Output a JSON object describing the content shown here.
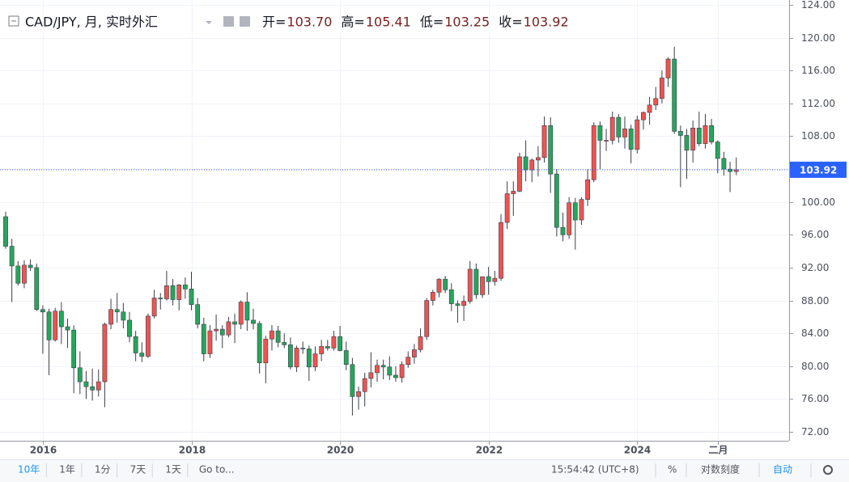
{
  "chart_data": {
    "type": "candlestick",
    "title": "CAD/JPY, 月, 实时外汇",
    "legend_values": [
      {
        "label": "开=",
        "value": "103.70"
      },
      {
        "label": "高=",
        "value": "105.41"
      },
      {
        "label": "低=",
        "value": "103.25"
      },
      {
        "label": "收=",
        "value": "103.92"
      }
    ],
    "up_color": "#ef5350",
    "down_color": "#26a65b",
    "grid": true,
    "x": [
      "2015-07",
      "2015-08",
      "2015-09",
      "2015-10",
      "2015-11",
      "2015-12",
      "2016-01",
      "2016-02",
      "2016-03",
      "2016-04",
      "2016-05",
      "2016-06",
      "2016-07",
      "2016-08",
      "2016-09",
      "2016-10",
      "2016-11",
      "2016-12",
      "2017-01",
      "2017-02",
      "2017-03",
      "2017-04",
      "2017-05",
      "2017-06",
      "2017-07",
      "2017-08",
      "2017-09",
      "2017-10",
      "2017-11",
      "2017-12",
      "2018-01",
      "2018-02",
      "2018-03",
      "2018-04",
      "2018-05",
      "2018-06",
      "2018-07",
      "2018-08",
      "2018-09",
      "2018-10",
      "2018-11",
      "2018-12",
      "2019-01",
      "2019-02",
      "2019-03",
      "2019-04",
      "2019-05",
      "2019-06",
      "2019-07",
      "2019-08",
      "2019-09",
      "2019-10",
      "2019-11",
      "2019-12",
      "2020-01",
      "2020-02",
      "2020-03",
      "2020-04",
      "2020-05",
      "2020-06",
      "2020-07",
      "2020-08",
      "2020-09",
      "2020-10",
      "2020-11",
      "2020-12",
      "2021-01",
      "2021-02",
      "2021-03",
      "2021-04",
      "2021-05",
      "2021-06",
      "2021-07",
      "2021-08",
      "2021-09",
      "2021-10",
      "2021-11",
      "2021-12",
      "2022-01",
      "2022-02",
      "2022-03",
      "2022-04",
      "2022-05",
      "2022-06",
      "2022-07",
      "2022-08",
      "2022-09",
      "2022-10",
      "2022-11",
      "2022-12",
      "2023-01",
      "2023-02",
      "2023-03",
      "2023-04",
      "2023-05",
      "2023-06",
      "2023-07",
      "2023-08",
      "2023-09",
      "2023-10",
      "2023-11",
      "2023-12",
      "2024-01",
      "2024-02",
      "2024-03",
      "2024-04",
      "2024-05",
      "2024-06",
      "2024-07",
      "2024-08",
      "2024-09",
      "2024-10",
      "2024-11",
      "2024-12",
      "2025-01",
      "2025-02",
      "2025-03",
      "2025-04",
      "2025-05"
    ],
    "open": [
      98.2,
      94.6,
      92.2,
      90.1,
      92.3,
      92.0,
      86.9,
      86.6,
      83.2,
      86.7,
      84.8,
      84.4,
      79.8,
      78.1,
      77.5,
      77.1,
      78.1,
      85.1,
      86.9,
      86.6,
      85.6,
      83.6,
      81.6,
      81.2,
      86.1,
      88.3,
      88.2,
      89.8,
      88.1,
      89.9,
      89.4,
      87.5,
      85.1,
      81.5,
      84.3,
      84.5,
      83.8,
      85.4,
      85.1,
      87.8,
      85.6,
      85.2,
      80.4,
      83.3,
      84.3,
      82.9,
      82.6,
      79.9,
      82.2,
      82.1,
      79.9,
      81.5,
      82.4,
      82.2,
      83.6,
      81.9,
      80.2,
      76.3,
      76.9,
      78.5,
      79.2,
      80.1,
      79.9,
      78.9,
      78.6,
      80.2,
      81.1,
      82.0,
      83.6,
      88.0,
      89.0,
      90.6,
      89.3,
      87.6,
      87.4,
      87.9,
      91.8,
      88.7,
      90.9,
      90.3,
      90.7,
      97.5,
      101.0,
      101.3,
      105.5,
      103.9,
      105.1,
      105.4,
      109.3,
      103.4,
      96.9,
      96.0,
      99.9,
      97.8,
      100.3,
      102.7,
      109.3,
      107.5,
      107.5,
      110.3,
      107.9,
      108.9,
      106.4,
      110.0,
      110.9,
      111.8,
      112.6,
      115.1,
      117.4,
      108.6,
      108.1,
      106.3,
      109.0,
      107.1,
      109.3,
      107.3,
      105.3,
      104.0,
      103.7
    ],
    "high": [
      98.8,
      95.5,
      92.8,
      92.9,
      93.0,
      92.5,
      87.4,
      87.0,
      87.1,
      87.8,
      85.8,
      85.0,
      81.8,
      79.4,
      79.7,
      79.6,
      85.3,
      88.2,
      88.9,
      87.7,
      86.6,
      84.3,
      82.9,
      86.4,
      89.3,
      88.9,
      91.6,
      90.6,
      90.0,
      90.8,
      91.5,
      88.3,
      85.9,
      85.0,
      86.3,
      85.0,
      86.0,
      86.4,
      88.0,
      89.0,
      87.0,
      85.5,
      83.7,
      85.0,
      84.9,
      84.0,
      83.5,
      82.5,
      83.0,
      82.5,
      82.4,
      83.2,
      83.2,
      84.3,
      84.9,
      83.0,
      81.0,
      77.5,
      79.2,
      81.7,
      80.8,
      80.8,
      81.2,
      80.0,
      80.6,
      81.8,
      82.7,
      84.6,
      88.3,
      89.3,
      90.7,
      91.0,
      90.1,
      88.0,
      88.6,
      92.8,
      92.5,
      90.9,
      92.1,
      91.6,
      98.5,
      102.5,
      102.5,
      106.0,
      107.5,
      105.3,
      106.8,
      110.4,
      110.3,
      104.0,
      98.7,
      100.6,
      100.5,
      100.6,
      104.0,
      109.7,
      109.8,
      108.9,
      111.0,
      110.7,
      110.4,
      109.4,
      110.5,
      111.0,
      112.8,
      114.0,
      116.0,
      117.6,
      118.9,
      109.3,
      108.9,
      109.9,
      111.0,
      110.7,
      110.1,
      107.5,
      106.1,
      104.9,
      105.41
    ],
    "low": [
      94.3,
      87.8,
      89.8,
      89.5,
      91.6,
      86.7,
      81.5,
      78.9,
      83.0,
      82.7,
      82.2,
      76.7,
      76.6,
      76.0,
      75.8,
      76.3,
      75.0,
      84.5,
      85.3,
      84.6,
      82.9,
      80.6,
      80.5,
      81.0,
      85.8,
      86.9,
      88.0,
      87.4,
      86.8,
      88.2,
      86.8,
      84.6,
      80.6,
      81.0,
      83.1,
      82.2,
      83.5,
      82.8,
      84.5,
      84.3,
      84.5,
      79.1,
      77.9,
      81.9,
      82.3,
      82.2,
      79.6,
      79.3,
      81.5,
      78.2,
      79.4,
      80.6,
      81.9,
      81.9,
      81.8,
      79.5,
      74.0,
      74.7,
      75.1,
      77.4,
      78.1,
      78.4,
      78.3,
      78.1,
      78.0,
      79.8,
      80.3,
      81.7,
      83.2,
      87.4,
      88.4,
      88.9,
      86.7,
      85.3,
      85.5,
      87.6,
      88.2,
      88.3,
      88.7,
      89.8,
      90.4,
      96.7,
      98.3,
      101.2,
      102.5,
      102.4,
      103.1,
      104.8,
      101.1,
      95.8,
      95.2,
      95.5,
      94.2,
      97.2,
      99.5,
      102.4,
      104.0,
      106.2,
      107.0,
      107.2,
      106.5,
      104.7,
      105.9,
      108.8,
      109.4,
      111.2,
      112.0,
      114.0,
      108.3,
      101.8,
      102.8,
      104.8,
      106.8,
      106.5,
      107.0,
      103.5,
      103.2,
      101.2,
      103.25
    ],
    "close": [
      94.6,
      92.2,
      90.1,
      92.3,
      92.0,
      86.9,
      86.6,
      83.2,
      86.7,
      84.8,
      84.4,
      79.8,
      78.1,
      77.5,
      77.1,
      78.1,
      85.1,
      86.9,
      86.6,
      85.6,
      83.6,
      81.6,
      81.2,
      86.1,
      88.3,
      88.2,
      89.8,
      88.1,
      89.9,
      89.4,
      87.5,
      85.1,
      81.5,
      84.3,
      84.5,
      83.8,
      85.4,
      85.1,
      87.8,
      85.6,
      85.2,
      80.4,
      83.3,
      84.3,
      82.9,
      82.6,
      79.9,
      82.2,
      82.1,
      79.9,
      81.5,
      82.4,
      82.2,
      83.6,
      81.9,
      80.2,
      76.3,
      76.9,
      78.5,
      79.2,
      80.1,
      79.9,
      78.9,
      78.6,
      80.2,
      81.1,
      82.0,
      83.6,
      88.0,
      89.0,
      90.6,
      89.3,
      87.6,
      87.4,
      87.9,
      91.8,
      88.7,
      90.9,
      90.3,
      90.7,
      97.5,
      101.0,
      101.3,
      105.5,
      103.9,
      105.1,
      105.4,
      109.3,
      103.4,
      96.9,
      96.0,
      99.9,
      97.8,
      100.3,
      102.7,
      109.3,
      107.5,
      107.5,
      110.3,
      107.9,
      108.9,
      106.4,
      110.0,
      110.9,
      111.8,
      112.6,
      115.1,
      117.4,
      108.6,
      108.1,
      106.3,
      109.0,
      107.1,
      109.3,
      107.3,
      105.3,
      104.0,
      103.7,
      103.92
    ],
    "ylim": [
      72,
      124
    ],
    "yticks": [
      {
        "value": 72,
        "label": "72.00"
      },
      {
        "value": 76,
        "label": "76.00"
      },
      {
        "value": 80,
        "label": "80.00"
      },
      {
        "value": 84,
        "label": "84.00"
      },
      {
        "value": 88,
        "label": "88.00"
      },
      {
        "value": 92,
        "label": "92.00"
      },
      {
        "value": 96,
        "label": "96.00"
      },
      {
        "value": 100,
        "label": "100.00"
      },
      {
        "value": 104,
        "label": "104.00"
      },
      {
        "value": 108,
        "label": "108.00"
      },
      {
        "value": 112,
        "label": "112.00"
      },
      {
        "value": 116,
        "label": "116.00"
      },
      {
        "value": 120,
        "label": "120.00"
      },
      {
        "value": 124,
        "label": "124.00"
      }
    ],
    "xticks": [
      {
        "value": "2016-01",
        "label": "2016"
      },
      {
        "value": "2018-01",
        "label": "2018"
      },
      {
        "value": "2020-01",
        "label": "2020"
      },
      {
        "value": "2022-01",
        "label": "2022"
      },
      {
        "value": "2024-01",
        "label": "2024"
      },
      {
        "value": "2025-02",
        "label": "二月"
      }
    ]
  },
  "toolbar": {
    "ranges": [
      "10年",
      "1年",
      "1分",
      "7天",
      "1天"
    ],
    "goto": "Go to...",
    "clock": "15:54:42 (UTC+8)",
    "percent": "%",
    "log": "对数刻度",
    "auto": "自动"
  }
}
